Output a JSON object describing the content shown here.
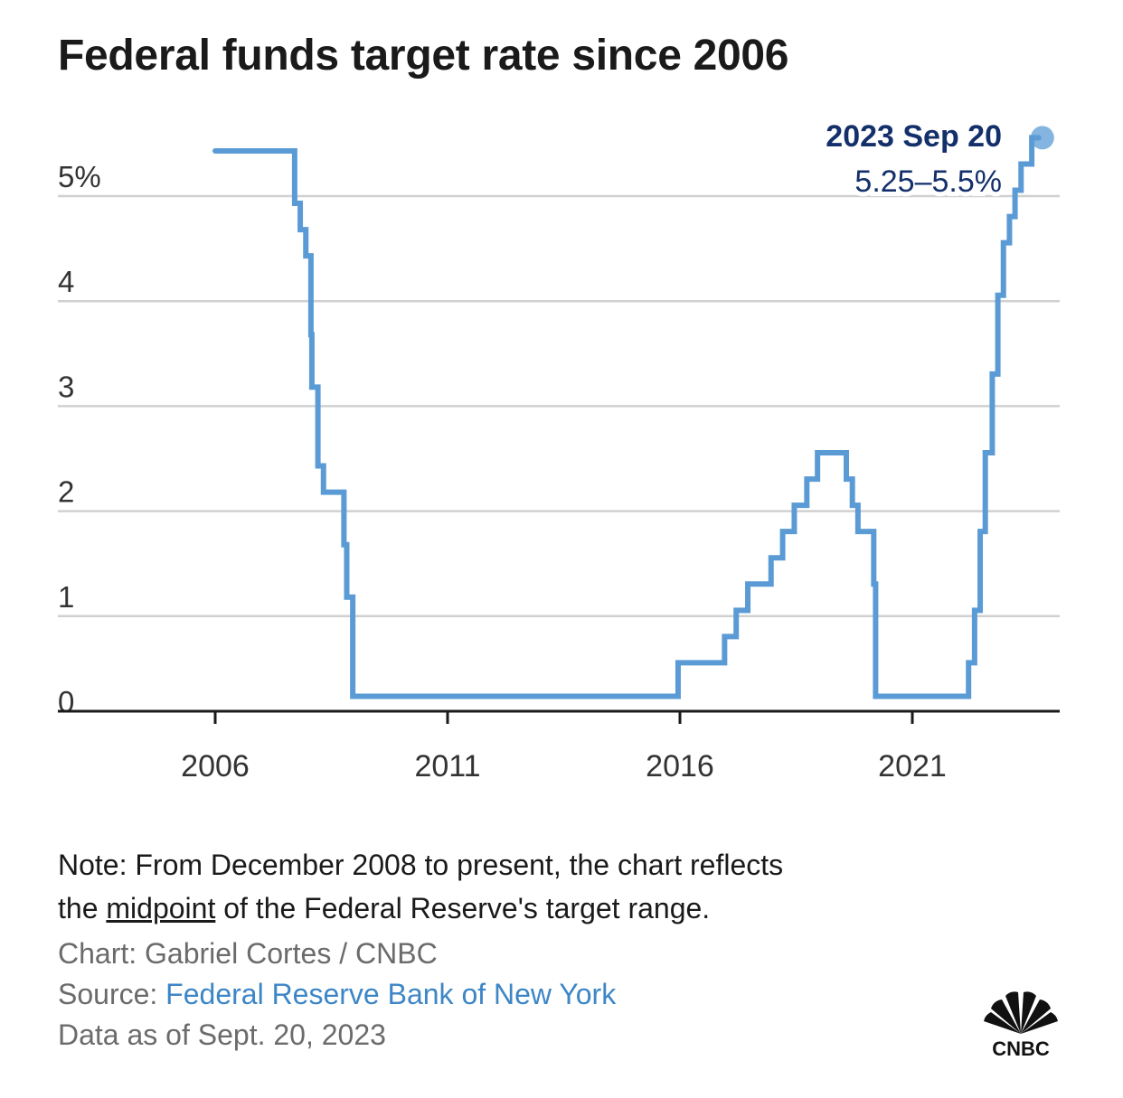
{
  "header": {
    "title": "Federal funds target rate since 2006"
  },
  "annotation": {
    "date": "2023 Sep 20",
    "value": "5.25–5.5%"
  },
  "footer": {
    "note_prefix": "Note: From December 2008 to present, the chart reflects",
    "note_line2_start": "the ",
    "note_underlined": "midpoint",
    "note_line2_end": " of the Federal Reserve's target range.",
    "credit": "Chart: Gabriel Cortes / CNBC",
    "source_label": "Source: ",
    "source_link": "Federal Reserve Bank of New York",
    "data_as_of": "Data as of Sept. 20, 2023"
  },
  "logo": {
    "text": "CNBC",
    "icon": "cnbc-peacock-icon"
  },
  "colors": {
    "line": "#5b9bd5",
    "annotation": "#14306a",
    "grid": "#d0d0d0",
    "axis": "#1a1a1a",
    "link": "#3d86c6"
  },
  "chart_data": {
    "type": "line",
    "step": true,
    "title": "Federal funds target rate since 2006",
    "xlabel": "",
    "ylabel": "",
    "xlim": [
      2002.6,
      2024.2
    ],
    "ylim": [
      0,
      5.5
    ],
    "grid": true,
    "y_ticks": [
      0,
      1,
      2,
      3,
      4,
      5
    ],
    "y_tick_labels": [
      "0",
      "1",
      "2",
      "3",
      "4",
      "5%"
    ],
    "x_ticks": [
      2006,
      2011,
      2016,
      2021
    ],
    "x_tick_labels": [
      "2006",
      "2011",
      "2016",
      "2021"
    ],
    "series": [
      {
        "name": "Federal funds target rate",
        "points": [
          [
            2006.0,
            5.25
          ],
          [
            2007.71,
            4.75
          ],
          [
            2007.83,
            4.5
          ],
          [
            2007.95,
            4.25
          ],
          [
            2008.06,
            3.5
          ],
          [
            2008.08,
            3.0
          ],
          [
            2008.21,
            2.25
          ],
          [
            2008.33,
            2.0
          ],
          [
            2008.77,
            1.5
          ],
          [
            2008.83,
            1.0
          ],
          [
            2008.96,
            0.125
          ],
          [
            2015.96,
            0.375
          ],
          [
            2016.96,
            0.625
          ],
          [
            2017.21,
            0.875
          ],
          [
            2017.46,
            1.125
          ],
          [
            2017.96,
            1.375
          ],
          [
            2018.21,
            1.625
          ],
          [
            2018.46,
            1.875
          ],
          [
            2018.73,
            2.125
          ],
          [
            2018.96,
            2.375
          ],
          [
            2019.58,
            2.125
          ],
          [
            2019.71,
            1.875
          ],
          [
            2019.83,
            1.625
          ],
          [
            2020.17,
            1.125
          ],
          [
            2020.21,
            0.125
          ],
          [
            2022.21,
            0.375
          ],
          [
            2022.34,
            0.875
          ],
          [
            2022.46,
            1.625
          ],
          [
            2022.57,
            2.375
          ],
          [
            2022.72,
            3.125
          ],
          [
            2022.84,
            3.875
          ],
          [
            2022.96,
            4.375
          ],
          [
            2023.09,
            4.625
          ],
          [
            2023.21,
            4.875
          ],
          [
            2023.34,
            5.125
          ],
          [
            2023.57,
            5.375
          ],
          [
            2023.72,
            5.375
          ]
        ]
      }
    ],
    "annotations": [
      {
        "x": 2023.72,
        "y": 5.375,
        "label": "2023 Sep 20",
        "sublabel": "5.25–5.5%"
      }
    ]
  }
}
